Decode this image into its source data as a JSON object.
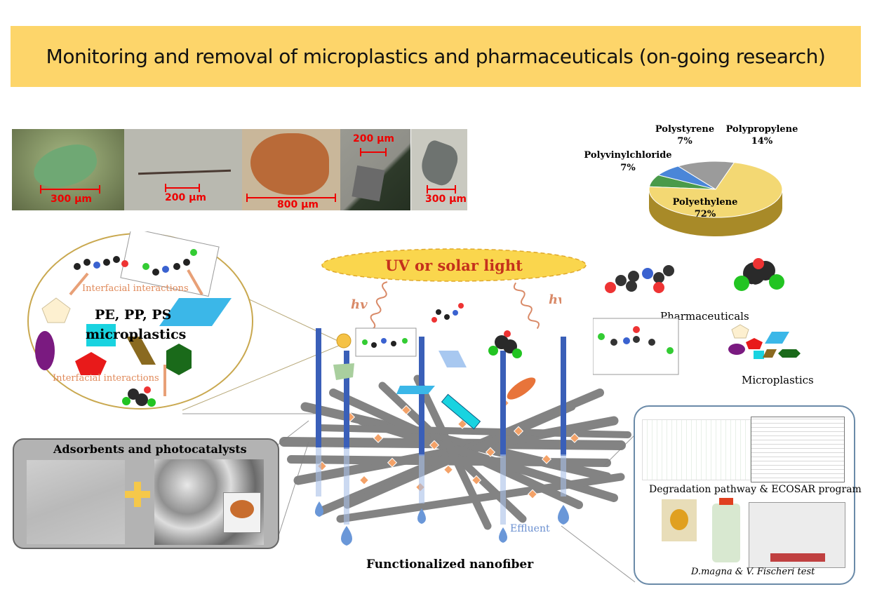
{
  "title": "Monitoring and removal of microplastics and pharmaceuticals (on-going research)",
  "scale_bars": [
    "300 µm",
    "200 µm",
    "800 µm",
    "200 µm",
    "300 µm"
  ],
  "chart_data": {
    "type": "pie",
    "labels": [
      "Polyethylene",
      "Polypropylene",
      "Polystyrene",
      "Polyvinylchloride"
    ],
    "values": [
      72,
      14,
      7,
      7
    ],
    "value_labels": [
      "72%",
      "14%",
      "7%",
      "7%"
    ],
    "colors": [
      "#f3d873",
      "#9b9b9b",
      "#4a86d8",
      "#4a9a4a"
    ]
  },
  "light_label": "UV or solar light",
  "hv_label": "hv",
  "pharma_label": "Pharmaceuticals",
  "microplastics_label": "Microplastics",
  "inset": {
    "heading_line1": "PE, PP, PS",
    "heading_line2": "microplastics",
    "interaction_label_1": "Interfacial  interactions",
    "interaction_label_2": "Interfacial  interactions"
  },
  "adsorbents_label": "Adsorbents and photocatalysts",
  "effluent_label": "Effluent",
  "nanofiber_label": "Functionalized  nanofiber",
  "degradation_label": "Degradation pathway & ECOSAR program",
  "toxicity_label": "D.magna & V. Fischeri test",
  "colors": {
    "banner": "#fdd56a",
    "light_ellipse": "#fad64d",
    "light_text": "#c5311c",
    "fiber": "#8a8a8a",
    "pillar": "#3a5fb8",
    "drop": "#6a97d8"
  }
}
